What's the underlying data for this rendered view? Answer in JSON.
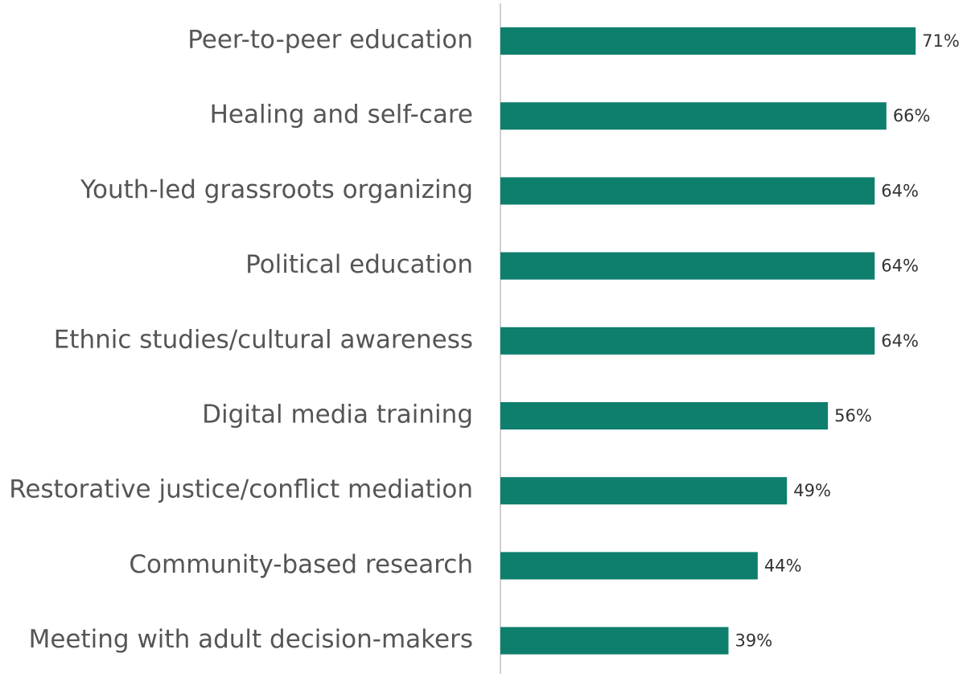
{
  "chart_data": {
    "type": "bar",
    "orientation": "horizontal",
    "categories": [
      "Peer-to-peer education",
      "Healing and self-care",
      "Youth-led grassroots organizing",
      "Political education",
      "Ethnic studies/cultural awareness",
      "Digital media training",
      "Restorative justice/conflict mediation",
      "Community-based research",
      "Meeting with adult decision-makers"
    ],
    "values": [
      71,
      66,
      64,
      64,
      64,
      56,
      49,
      44,
      39
    ],
    "value_labels": [
      "71%",
      "66%",
      "64%",
      "64%",
      "64%",
      "56%",
      "49%",
      "44%",
      "39%"
    ],
    "color": "#0e7f6d"
  }
}
